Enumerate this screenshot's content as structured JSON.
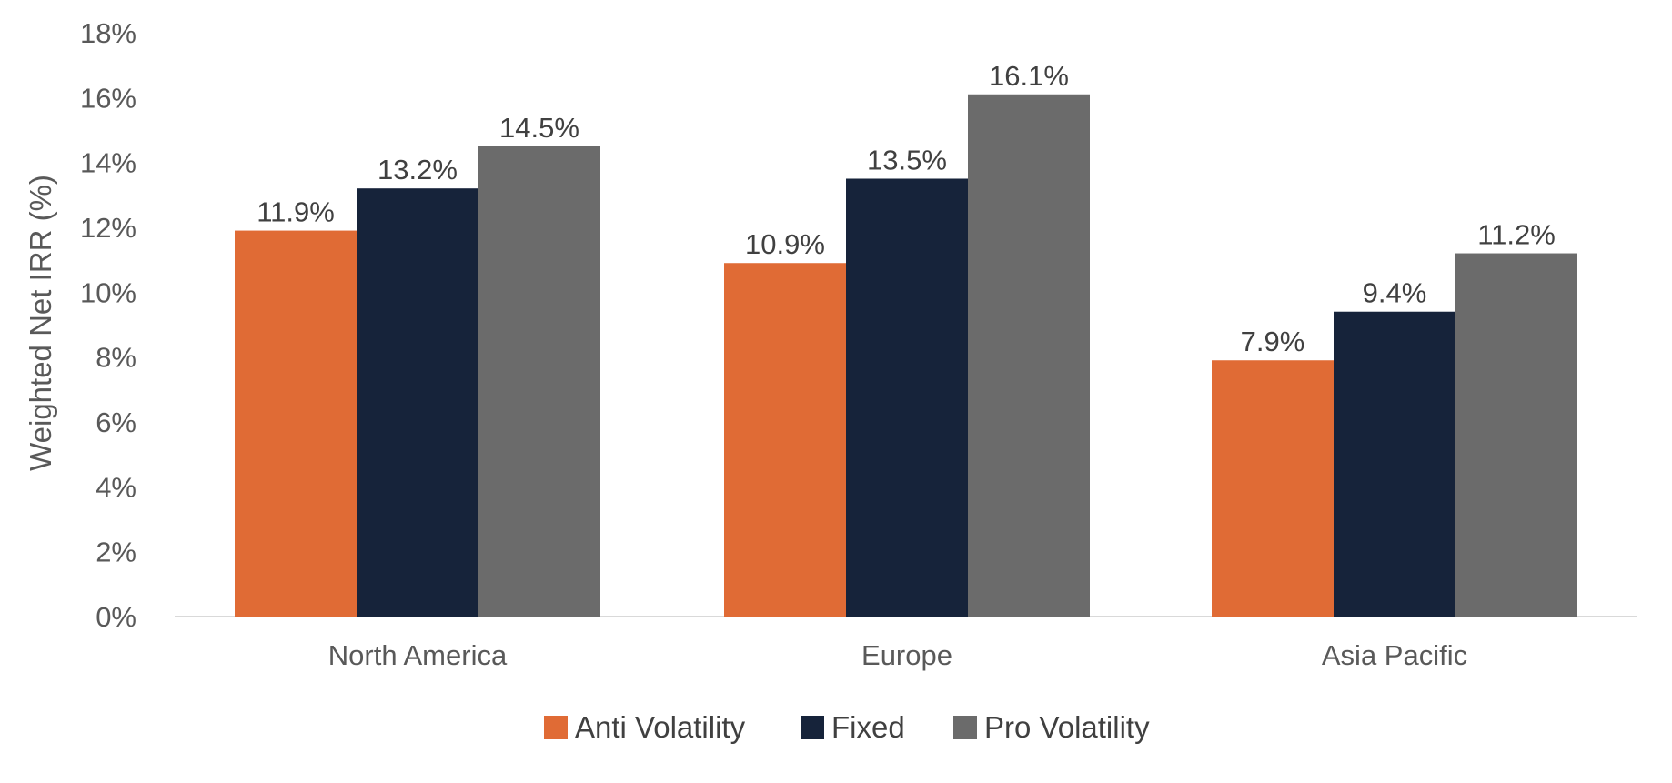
{
  "chart_data": {
    "type": "bar",
    "title": "",
    "xlabel": "",
    "ylabel": "Weighted Net IRR (%)",
    "ylim": [
      0,
      18
    ],
    "y_ticks": [
      0,
      2,
      4,
      6,
      8,
      10,
      12,
      14,
      16,
      18
    ],
    "y_tick_labels": [
      "0%",
      "2%",
      "4%",
      "6%",
      "8%",
      "10%",
      "12%",
      "14%",
      "16%",
      "18%"
    ],
    "categories": [
      "North America",
      "Europe",
      "Asia Pacific"
    ],
    "series": [
      {
        "name": "Anti Volatility",
        "color": "#E06B35",
        "values": [
          11.9,
          10.9,
          7.9
        ],
        "labels": [
          "11.9%",
          "10.9%",
          "7.9%"
        ]
      },
      {
        "name": "Fixed",
        "color": "#16233A",
        "values": [
          13.2,
          13.5,
          9.4
        ],
        "labels": [
          "13.2%",
          "13.5%",
          "9.4%"
        ]
      },
      {
        "name": "Pro Volatility",
        "color": "#6B6B6B",
        "values": [
          14.5,
          16.1,
          11.2
        ],
        "labels": [
          "14.5%",
          "16.1%",
          "11.2%"
        ]
      }
    ],
    "grid": false,
    "legend_position": "bottom",
    "axis_color": "#D9D9D9"
  }
}
